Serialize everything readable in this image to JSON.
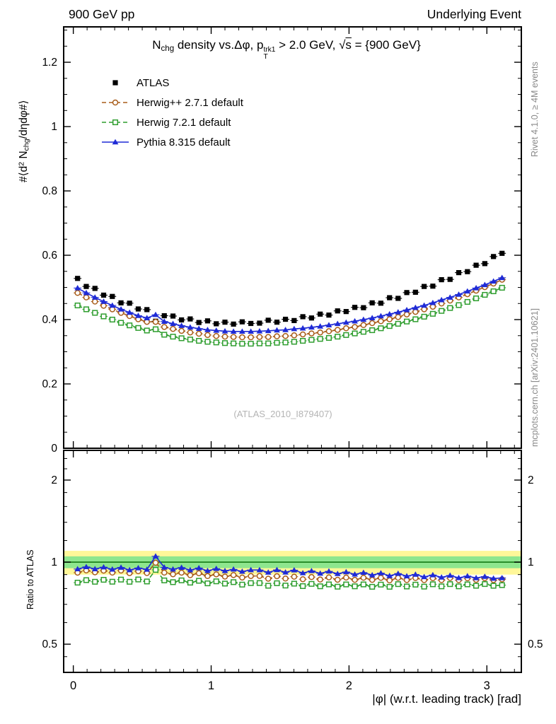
{
  "header": {
    "left": "900 GeV pp",
    "right": "Underlying Event"
  },
  "side_notes": {
    "right_top": "Rivet 4.1.0, ≥ 4M events",
    "right_bottom": "mcplots.cern.ch [arXiv:2401.10621]"
  },
  "watermark": "(ATLAS_2010_I879407)",
  "title": {
    "text": "N_chg density vs.Δφ, p_T^trk1 > 2.0 GeV, √s = {900 GeV}",
    "segments": [
      {
        "t": "N"
      },
      {
        "t": "chg",
        "s": "sub"
      },
      {
        "t": " density vs.Δφ, p"
      },
      {
        "s": "stack",
        "sup": "trk1",
        "sub": "T"
      },
      {
        "t": " > 2.0 GeV, "
      },
      {
        "t": "√"
      },
      {
        "t": "s",
        "s": "ol"
      },
      {
        "t": " = {900 GeV}"
      }
    ]
  },
  "y_axis_main": {
    "text": "#⟨d² N_chg/dηdφ#⟩",
    "segments": [
      {
        "t": "#⟨d"
      },
      {
        "t": "2",
        "s": "sup"
      },
      {
        "t": " N"
      },
      {
        "t": "chg",
        "s": "sub"
      },
      {
        "t": "/dηdφ#⟩"
      }
    ]
  },
  "y_axis_ratio": {
    "text": "Ratio to ATLAS"
  },
  "x_axis": {
    "text": "|φ| (w.r.t. leading track) [rad]"
  },
  "chart_data": {
    "type": "line",
    "title": "N_chg density vs.Δφ, p_T^trk1 > 2.0 GeV, √s = {900 GeV}",
    "xlabel": "|φ| (w.r.t. leading track) [rad]",
    "ylabel_main": "#⟨d² N_chg/dηdφ#⟩",
    "ylabel_ratio": "Ratio to ATLAS",
    "legend_position": "top-left",
    "grid": false,
    "x": [
      0.031,
      0.094,
      0.157,
      0.22,
      0.283,
      0.346,
      0.408,
      0.471,
      0.534,
      0.597,
      0.66,
      0.723,
      0.785,
      0.848,
      0.911,
      0.974,
      1.037,
      1.1,
      1.162,
      1.225,
      1.288,
      1.351,
      1.414,
      1.477,
      1.539,
      1.602,
      1.665,
      1.728,
      1.791,
      1.854,
      1.917,
      1.979,
      2.042,
      2.105,
      2.168,
      2.231,
      2.294,
      2.356,
      2.419,
      2.482,
      2.545,
      2.608,
      2.671,
      2.733,
      2.796,
      2.859,
      2.922,
      2.985,
      3.048,
      3.11
    ],
    "series": [
      {
        "id": "atlas",
        "label": "ATLAS",
        "role": "reference-data",
        "marker": "filled-square",
        "line": "none",
        "color": "#000000",
        "values": [
          0.528,
          0.503,
          0.497,
          0.476,
          0.472,
          0.452,
          0.451,
          0.433,
          0.431,
          0.395,
          0.412,
          0.411,
          0.399,
          0.402,
          0.391,
          0.396,
          0.387,
          0.392,
          0.386,
          0.393,
          0.388,
          0.389,
          0.398,
          0.392,
          0.401,
          0.397,
          0.409,
          0.405,
          0.417,
          0.414,
          0.427,
          0.425,
          0.438,
          0.437,
          0.452,
          0.451,
          0.468,
          0.466,
          0.484,
          0.485,
          0.503,
          0.504,
          0.524,
          0.525,
          0.546,
          0.549,
          0.569,
          0.574,
          0.596,
          0.606
        ]
      },
      {
        "id": "herwigpp",
        "label": "Herwig++ 2.7.1 default",
        "role": "mc",
        "marker": "open-circle",
        "line": "dashed",
        "color": "#a85d1a",
        "values": [
          0.483,
          0.469,
          0.456,
          0.443,
          0.432,
          0.421,
          0.411,
          0.401,
          0.393,
          0.393,
          0.377,
          0.371,
          0.365,
          0.36,
          0.356,
          0.352,
          0.349,
          0.347,
          0.346,
          0.345,
          0.345,
          0.346,
          0.346,
          0.348,
          0.349,
          0.351,
          0.354,
          0.357,
          0.36,
          0.364,
          0.368,
          0.373,
          0.377,
          0.383,
          0.389,
          0.395,
          0.401,
          0.408,
          0.416,
          0.424,
          0.432,
          0.44,
          0.45,
          0.459,
          0.469,
          0.479,
          0.49,
          0.501,
          0.512,
          0.524
        ]
      },
      {
        "id": "herwig7",
        "label": "Herwig 7.2.1 default",
        "role": "mc",
        "marker": "open-square",
        "line": "dashed",
        "color": "#2f9e2f",
        "values": [
          0.444,
          0.432,
          0.421,
          0.41,
          0.4,
          0.39,
          0.382,
          0.374,
          0.366,
          0.37,
          0.353,
          0.347,
          0.342,
          0.338,
          0.334,
          0.331,
          0.329,
          0.327,
          0.326,
          0.325,
          0.325,
          0.326,
          0.326,
          0.328,
          0.329,
          0.331,
          0.334,
          0.337,
          0.34,
          0.343,
          0.347,
          0.352,
          0.357,
          0.362,
          0.367,
          0.373,
          0.38,
          0.387,
          0.394,
          0.401,
          0.409,
          0.418,
          0.427,
          0.436,
          0.445,
          0.455,
          0.466,
          0.477,
          0.488,
          0.499
        ]
      },
      {
        "id": "pythia",
        "label": "Pythia 8.315 default",
        "role": "mc",
        "marker": "filled-triangle",
        "line": "solid",
        "color": "#1f2bd6",
        "values": [
          0.498,
          0.483,
          0.469,
          0.456,
          0.444,
          0.432,
          0.422,
          0.412,
          0.405,
          0.415,
          0.394,
          0.387,
          0.381,
          0.376,
          0.372,
          0.368,
          0.366,
          0.364,
          0.363,
          0.363,
          0.363,
          0.364,
          0.365,
          0.367,
          0.368,
          0.371,
          0.373,
          0.376,
          0.379,
          0.383,
          0.387,
          0.391,
          0.395,
          0.4,
          0.405,
          0.411,
          0.417,
          0.423,
          0.43,
          0.437,
          0.444,
          0.452,
          0.461,
          0.469,
          0.478,
          0.488,
          0.498,
          0.508,
          0.519,
          0.53
        ]
      }
    ],
    "main_axis": {
      "xlim": [
        -0.07,
        3.25
      ],
      "ylim": [
        0,
        1.31
      ],
      "xticks": [
        0,
        1,
        2,
        3
      ],
      "yticks": [
        0,
        0.2,
        0.4,
        0.6,
        0.8,
        1,
        1.2
      ],
      "x_minor_step": 0.1,
      "y_minor_step": 0.05
    },
    "ratio_axis": {
      "scale": "log",
      "ylim": [
        0.394,
        2.57
      ],
      "yticks": [
        0.5,
        1,
        2
      ],
      "minor_ticks": [
        0.45,
        0.6,
        0.7,
        0.8,
        0.9,
        1.2,
        1.4,
        1.6,
        1.8,
        2.2,
        2.4
      ]
    },
    "ratio_bands": {
      "outer": {
        "range": [
          0.9,
          1.1
        ],
        "color": "#fff799"
      },
      "inner": {
        "range": [
          0.95,
          1.05
        ],
        "color": "#8ee68e"
      },
      "center_line": {
        "value": 1,
        "color": "#147a14"
      }
    }
  }
}
